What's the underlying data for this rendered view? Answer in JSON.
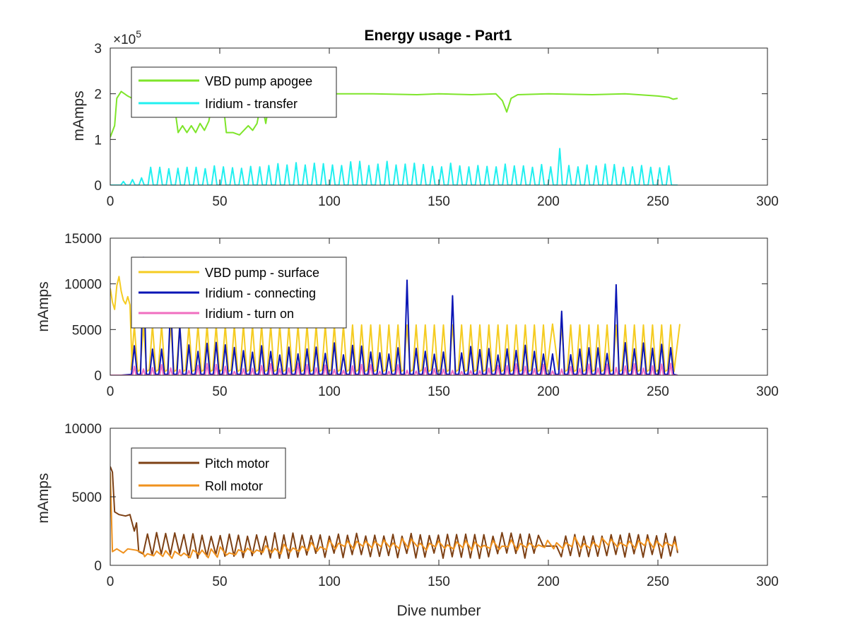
{
  "chart_data": [
    {
      "type": "line",
      "title": "Energy usage - Part1",
      "xlabel": "",
      "ylabel": "mAmps",
      "xlim": [
        0,
        300
      ],
      "ylim": [
        0,
        3
      ],
      "y_exponent_label": "×10",
      "y_exponent_power": "5",
      "x_ticks": [
        "0",
        "50",
        "100",
        "150",
        "200",
        "250",
        "300"
      ],
      "y_ticks": [
        "0",
        "1",
        "2",
        "3"
      ],
      "legend_position": "top-left",
      "grid": false,
      "series": [
        {
          "name": "VBD pump apogee",
          "color": "#7ee52a",
          "points": [
            [
              0,
              1.05
            ],
            [
              2,
              1.3
            ],
            [
              3,
              1.9
            ],
            [
              5,
              2.05
            ],
            [
              8,
              1.95
            ],
            [
              12,
              1.85
            ],
            [
              15,
              1.8
            ],
            [
              20,
              1.75
            ],
            [
              25,
              1.7
            ],
            [
              28,
              1.65
            ],
            [
              30,
              1.5
            ],
            [
              31,
              1.15
            ],
            [
              33,
              1.3
            ],
            [
              35,
              1.15
            ],
            [
              37,
              1.3
            ],
            [
              39,
              1.15
            ],
            [
              41,
              1.35
            ],
            [
              43,
              1.2
            ],
            [
              45,
              1.4
            ],
            [
              47,
              1.9
            ],
            [
              50,
              1.95
            ],
            [
              52,
              1.6
            ],
            [
              53,
              1.15
            ],
            [
              56,
              1.15
            ],
            [
              59,
              1.1
            ],
            [
              61,
              1.2
            ],
            [
              63,
              1.3
            ],
            [
              65,
              1.2
            ],
            [
              67,
              1.35
            ],
            [
              69,
              1.85
            ],
            [
              71,
              1.35
            ],
            [
              73,
              1.95
            ],
            [
              80,
              2.0
            ],
            [
              90,
              1.98
            ],
            [
              100,
              2.0
            ],
            [
              120,
              2.0
            ],
            [
              140,
              1.98
            ],
            [
              150,
              2.0
            ],
            [
              165,
              1.98
            ],
            [
              176,
              2.0
            ],
            [
              179,
              1.85
            ],
            [
              181,
              1.6
            ],
            [
              183,
              1.9
            ],
            [
              186,
              1.98
            ],
            [
              200,
              2.0
            ],
            [
              220,
              1.98
            ],
            [
              235,
              2.0
            ],
            [
              250,
              1.95
            ],
            [
              255,
              1.92
            ],
            [
              257,
              1.88
            ],
            [
              259,
              1.9
            ]
          ]
        },
        {
          "name": "Iridium - transfer",
          "color": "#21f0f0",
          "points": []
        }
      ]
    },
    {
      "type": "line",
      "title": "",
      "xlabel": "",
      "ylabel": "mAmps",
      "xlim": [
        0,
        300
      ],
      "ylim": [
        0,
        15000
      ],
      "x_ticks": [
        "0",
        "50",
        "100",
        "150",
        "200",
        "250",
        "300"
      ],
      "y_ticks": [
        "0",
        "5000",
        "10000",
        "15000"
      ],
      "legend_position": "top-left",
      "grid": false,
      "series": [
        {
          "name": "VBD pump - surface",
          "color": "#f5cc22",
          "points": []
        },
        {
          "name": "Iridium - connecting",
          "color": "#0a15b5",
          "points": []
        },
        {
          "name": "Iridium - turn on",
          "color": "#f06ec0",
          "points": []
        }
      ]
    },
    {
      "type": "line",
      "title": "",
      "xlabel": "Dive number",
      "ylabel": "mAmps",
      "xlim": [
        0,
        300
      ],
      "ylim": [
        0,
        10000
      ],
      "x_ticks": [
        "0",
        "50",
        "100",
        "150",
        "200",
        "250",
        "300"
      ],
      "y_ticks": [
        "0",
        "5000",
        "10000"
      ],
      "legend_position": "top-left",
      "grid": false,
      "series": [
        {
          "name": "Pitch motor",
          "color": "#7d4014",
          "points": []
        },
        {
          "name": "Roll motor",
          "color": "#f0921e",
          "points": []
        }
      ]
    }
  ]
}
